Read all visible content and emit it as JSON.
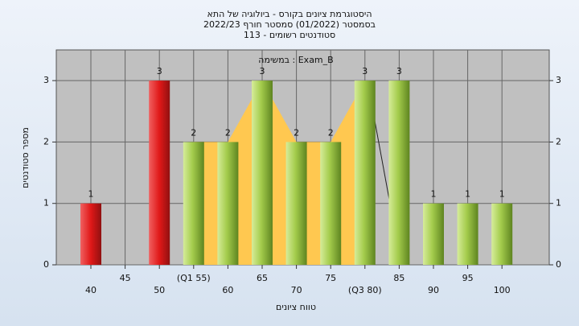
{
  "chart_data": {
    "type": "bar",
    "title_lines": [
      "היסטוגרמת ציונים בקורס - ביולוגיה של התא",
      "בסמסטר (01/2022) סמסטר חורף 2022/23",
      "סטודנטים רשומים - 113"
    ],
    "annotation": "במשימה : Exam_B",
    "x_label": "טווח ציונים",
    "y_label": "מספר סטודנטים",
    "categories": [
      "40",
      "45",
      "50",
      "(Q1 55)",
      "60",
      "65",
      "70",
      "75",
      "(Q3 80)",
      "85",
      "90",
      "95",
      "100"
    ],
    "values": [
      1,
      0,
      3,
      2,
      2,
      3,
      2,
      2,
      3,
      3,
      1,
      1,
      1
    ],
    "colors": [
      "red",
      "green",
      "red",
      "green",
      "green",
      "green",
      "green",
      "green",
      "green",
      "green",
      "green",
      "green",
      "green"
    ],
    "quartile_range": [
      3,
      8
    ],
    "ylim": [
      0,
      3.5
    ],
    "yticks": [
      0,
      1,
      2,
      3
    ],
    "grid": true
  }
}
